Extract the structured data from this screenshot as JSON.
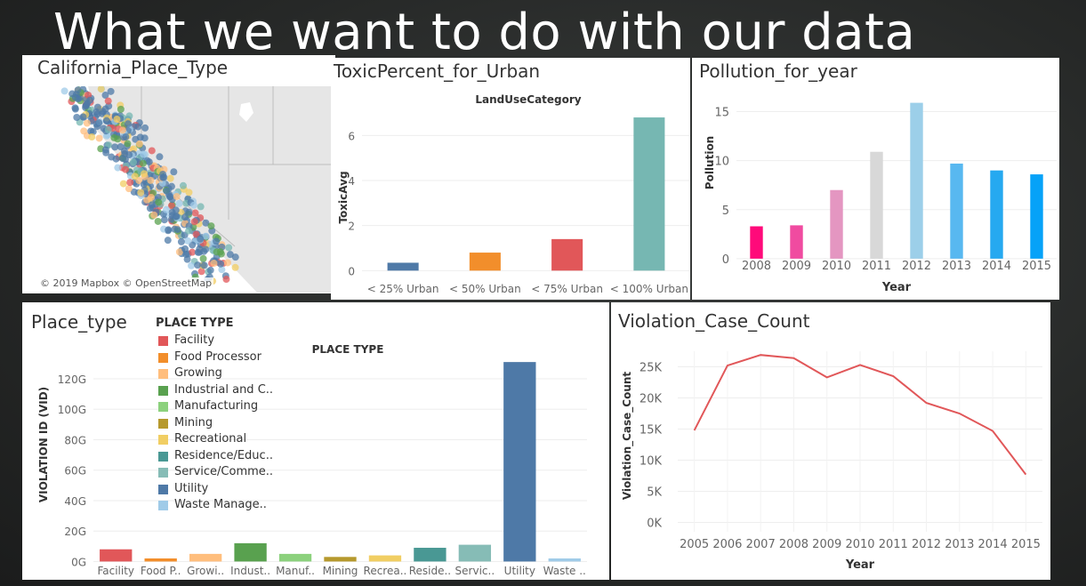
{
  "slide": {
    "title": "What we want to do with our data"
  },
  "map_panel": {
    "title": "California_Place_Type",
    "attribution": "© 2019 Mapbox © OpenStreetMap",
    "land_color": "#e8e8e8",
    "water_color": "#ffffff"
  },
  "toxic_panel": {
    "title": "ToxicPercent_for_Urban"
  },
  "pollution_panel": {
    "title": "Pollution_for_year"
  },
  "place_panel": {
    "title": "Place_type",
    "legend_title": "PLACE TYPE"
  },
  "violation_panel": {
    "title": "Violation_Case_Count"
  },
  "chart_data": [
    {
      "id": "toxic",
      "type": "bar",
      "title": "LandUseCategory",
      "ylabel": "ToxicAvg",
      "categories": [
        "< 25% Urban",
        "< 50% Urban",
        "< 75% Urban",
        "< 100% Urban"
      ],
      "values": [
        0.35,
        0.8,
        1.4,
        6.8
      ],
      "colors": [
        "#4e79a7",
        "#f28e2b",
        "#e15759",
        "#76b7b2"
      ],
      "ylim": [
        -0.5,
        7
      ],
      "yticks": [
        {
          "v": 0,
          "label": "0"
        },
        {
          "v": 2,
          "label": "2"
        },
        {
          "v": 4,
          "label": "4"
        },
        {
          "v": 6,
          "label": "6"
        }
      ]
    },
    {
      "id": "pollution",
      "type": "bar",
      "xlabel": "Year",
      "ylabel": "Pollution",
      "categories": [
        "2008",
        "2009",
        "2010",
        "2011",
        "2012",
        "2013",
        "2014",
        "2015"
      ],
      "values": [
        3.3,
        3.4,
        7.0,
        10.9,
        15.9,
        9.7,
        9.0,
        8.6
      ],
      "colors": [
        "#ff0a7a",
        "#f04ba0",
        "#e496c1",
        "#d8d8d8",
        "#9ccfe9",
        "#58b8f0",
        "#26a9f0",
        "#06a2f8"
      ],
      "ylim": [
        -1.1,
        16.5
      ],
      "yticks": [
        {
          "v": 0,
          "label": "0"
        },
        {
          "v": 5,
          "label": "5"
        },
        {
          "v": 10,
          "label": "10"
        },
        {
          "v": 15,
          "label": "15"
        }
      ]
    },
    {
      "id": "place",
      "type": "bar",
      "title": "PLACE TYPE",
      "ylabel": "VIOLATION ID (VID)",
      "categories": [
        "Facility",
        "Food P..",
        "Growi..",
        "Indust..",
        "Manuf..",
        "Mining",
        "Recrea..",
        "Reside..",
        "Servic..",
        "Utility",
        "Waste .."
      ],
      "values": [
        8,
        2,
        5,
        12,
        5,
        3,
        4,
        9,
        11,
        131,
        2
      ],
      "colors": [
        "#e15759",
        "#f28e2b",
        "#ffbe7d",
        "#59a14f",
        "#8cd17d",
        "#b6992d",
        "#f1ce63",
        "#499894",
        "#86bcb6",
        "#4e79a7",
        "#a0cbe8"
      ],
      "ylim": [
        -5,
        134
      ],
      "yticks": [
        {
          "v": 0,
          "label": "0G"
        },
        {
          "v": 20,
          "label": "20G"
        },
        {
          "v": 40,
          "label": "40G"
        },
        {
          "v": 60,
          "label": "60G"
        },
        {
          "v": 80,
          "label": "80G"
        },
        {
          "v": 100,
          "label": "100G"
        },
        {
          "v": 120,
          "label": "120G"
        }
      ],
      "legend_title": "PLACE TYPE",
      "legend": [
        "Facility",
        "Food Processor",
        "Growing",
        "Industrial and C..",
        "Manufacturing",
        "Mining",
        "Recreational",
        "Residence/Educ..",
        "Service/Comme..",
        "Utility",
        "Waste Manage.."
      ]
    },
    {
      "id": "violation",
      "type": "line",
      "xlabel": "Year",
      "ylabel": "Violation_Case_Count",
      "x": [
        "2005",
        "2006",
        "2007",
        "2008",
        "2009",
        "2010",
        "2011",
        "2012",
        "2013",
        "2014",
        "2015"
      ],
      "values": [
        14800,
        25200,
        26900,
        26400,
        23300,
        25300,
        23500,
        19200,
        17500,
        14700,
        7700
      ],
      "color": "#e15759",
      "ylim": [
        -1500,
        27500
      ],
      "yticks": [
        {
          "v": 0,
          "label": "0K"
        },
        {
          "v": 5000,
          "label": "5K"
        },
        {
          "v": 10000,
          "label": "10K"
        },
        {
          "v": 15000,
          "label": "15K"
        },
        {
          "v": 20000,
          "label": "20K"
        },
        {
          "v": 25000,
          "label": "25K"
        }
      ]
    }
  ]
}
